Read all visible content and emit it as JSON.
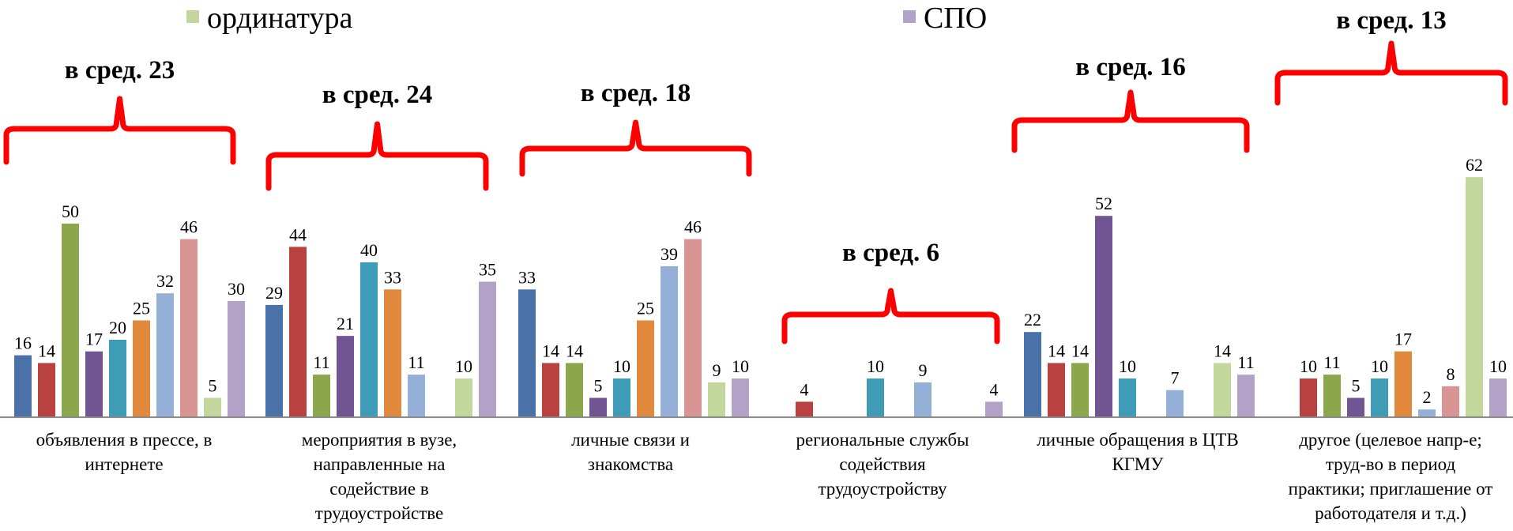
{
  "legend": {
    "visible_entries": [
      {
        "name": "ординатура",
        "color": "#c3d69b"
      },
      {
        "name": "СПО",
        "color": "#b3a2c7"
      }
    ]
  },
  "chart_data": {
    "type": "bar",
    "title": "",
    "xlabel": "",
    "ylabel": "",
    "ylim": [
      0,
      65
    ],
    "grid": false,
    "series_colors": [
      "#4a72a8",
      "#b94241",
      "#8ca74b",
      "#715593",
      "#3e9cb6",
      "#e18a3d",
      "#95b0d7",
      "#d99594",
      "#c3d69b",
      "#b3a2c7"
    ],
    "categories": [
      {
        "label_lines": [
          "объявления в прессе, в",
          "интернете"
        ],
        "average": "в сред. 23",
        "values": [
          16,
          14,
          50,
          17,
          20,
          25,
          32,
          46,
          5,
          30
        ]
      },
      {
        "label_lines": [
          "мероприятия в вузе,",
          "направленные на",
          "содействие в",
          "трудоустройстве"
        ],
        "average": "в сред. 24",
        "values": [
          29,
          44,
          11,
          21,
          40,
          33,
          11,
          null,
          10,
          35
        ]
      },
      {
        "label_lines": [
          "личные связи и",
          "знакомства"
        ],
        "average": "в сред. 18",
        "values": [
          33,
          14,
          14,
          5,
          10,
          25,
          39,
          46,
          9,
          10
        ]
      },
      {
        "label_lines": [
          "региональные службы",
          "содействия",
          "трудоустройству"
        ],
        "average": "в сред. 6",
        "values": [
          null,
          4,
          null,
          null,
          10,
          null,
          9,
          null,
          null,
          4
        ]
      },
      {
        "label_lines": [
          "личные обращения в ЦТВ",
          "КГМУ"
        ],
        "average": "в сред. 16",
        "values": [
          22,
          14,
          14,
          52,
          10,
          null,
          7,
          null,
          14,
          11
        ]
      },
      {
        "label_lines": [
          "другое (целевое напр-е;",
          "труд-во в период",
          "практики; приглашение от",
          "работодателя и т.д.)"
        ],
        "average": "в сред. 13",
        "values": [
          null,
          10,
          11,
          5,
          10,
          17,
          2,
          8,
          62,
          10
        ]
      }
    ]
  }
}
